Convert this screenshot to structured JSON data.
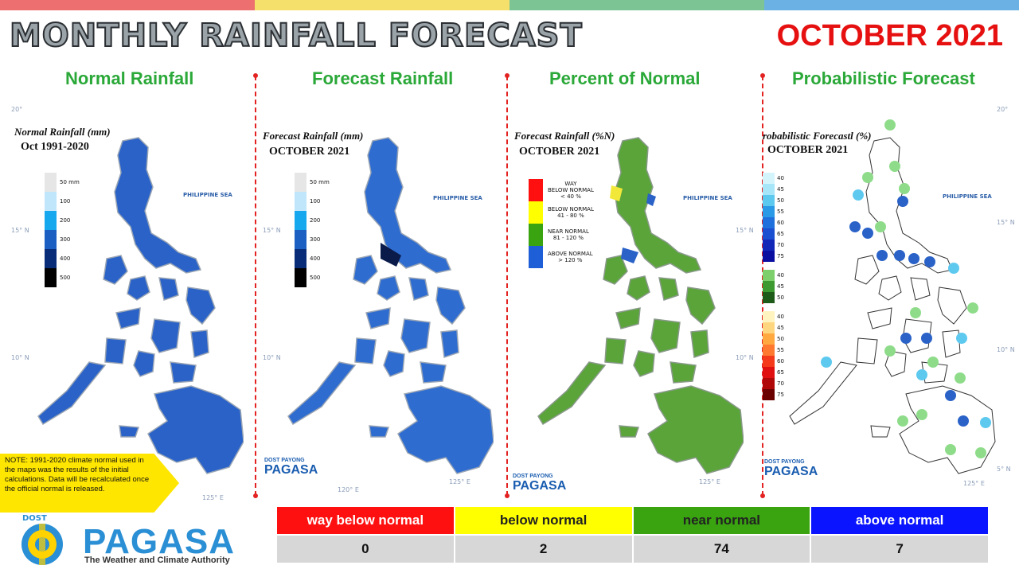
{
  "header": {
    "title": "MONTHLY RAINFALL FORECAST",
    "month": "OCTOBER 2021"
  },
  "colors": {
    "topbar": [
      "#ee6f6f",
      "#f4e06b",
      "#7cc494",
      "#6cb1e3"
    ],
    "title_green": "#2aa838",
    "month_red": "#e61010",
    "way_below": "#ff1010",
    "below": "#ffff00",
    "near": "#39a310",
    "above": "#0a14ff",
    "rain_blue": "#2a62c8",
    "forecast_green": "#5aa43a"
  },
  "panels": [
    {
      "title": "Normal Rainfall",
      "label1": "Normal Rainfall (mm)",
      "label2": "Oct 1991-2020",
      "legend": [
        "50 mm",
        "100",
        "200",
        "300",
        "400",
        "500"
      ]
    },
    {
      "title": "Forecast Rainfall",
      "label1": "Forecast Rainfall (mm)",
      "label2": "OCTOBER 2021",
      "legend": [
        "50 mm",
        "100",
        "200",
        "300",
        "400",
        "500"
      ]
    },
    {
      "title": "Percent of Normal",
      "label1": "Forecast Rainfall (%N)",
      "label2": "OCTOBER 2021",
      "legend": [
        {
          "line1": "WAY",
          "line2": "BELOW NORMAL",
          "line3": "< 40 %"
        },
        {
          "line1": "BELOW NORMAL",
          "line2": "41 - 80 %",
          "line3": ""
        },
        {
          "line1": "NEAR NORMAL",
          "line2": "81 - 120 %",
          "line3": ""
        },
        {
          "line1": "ABOVE NORMAL",
          "line2": "> 120 %",
          "line3": ""
        }
      ]
    },
    {
      "title": "Probabilistic Forecast",
      "label1": "robabilistic Forecastl (%)",
      "label2": "OCTOBER 2021",
      "legend_blue": [
        "40",
        "45",
        "50",
        "55",
        "60",
        "65",
        "70",
        "75"
      ],
      "legend_green": [
        "40",
        "45",
        "50"
      ],
      "legend_red": [
        "40",
        "45",
        "50",
        "55",
        "60",
        "65",
        "70",
        "75"
      ]
    }
  ],
  "map_text": {
    "sea": "PHILIPPINE SEA",
    "lat20": "20°",
    "lat15": "15° N",
    "lat10": "10° N",
    "lat5": "5° N",
    "lon120": "120° E",
    "lon125": "125° E",
    "logo_small_top": "DOST PAYONG",
    "logo_small_name": "PAGASA"
  },
  "note": "NOTE: 1991-2020 climate normal used in the maps was the results of the initial calculations. Data will be recalculated once the official normal is released.",
  "logo": {
    "dost": "DOST",
    "name": "PAGASA",
    "tagline": "The Weather and Climate Authority"
  },
  "summary": {
    "categories": [
      "way below normal",
      "below normal",
      "near normal",
      "above normal"
    ],
    "values": [
      "0",
      "2",
      "74",
      "7"
    ]
  }
}
